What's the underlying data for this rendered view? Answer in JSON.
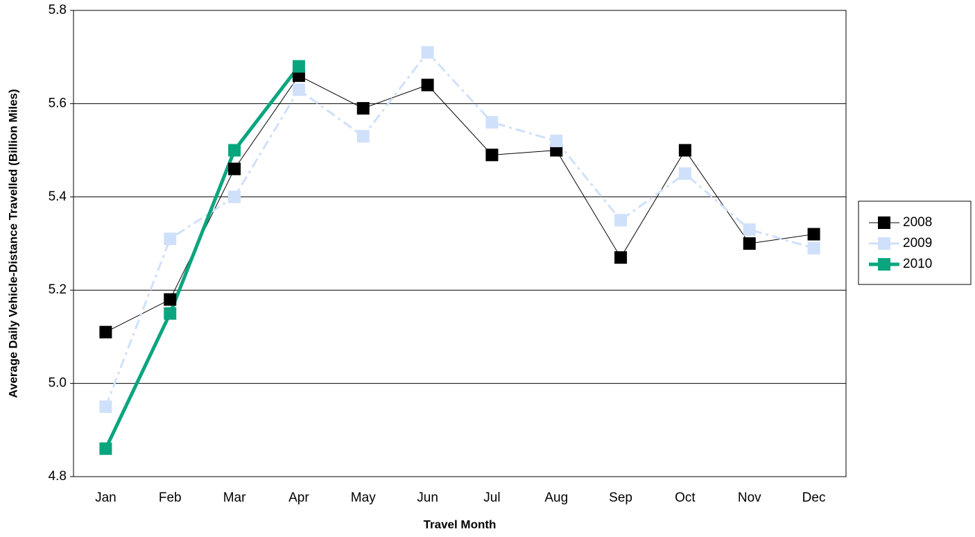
{
  "chart_data": {
    "type": "line",
    "x_label": "Travel Month",
    "y_label": "Average Daily Vehicle-Distance Travelled (Billion Miles)",
    "categories": [
      "Jan",
      "Feb",
      "Mar",
      "Apr",
      "May",
      "Jun",
      "Jul",
      "Aug",
      "Sep",
      "Oct",
      "Nov",
      "Dec"
    ],
    "series": [
      {
        "name": "2008",
        "color": "#000000",
        "line_width": 1,
        "dash": "solid",
        "values": [
          5.11,
          5.18,
          5.46,
          5.66,
          5.59,
          5.64,
          5.49,
          5.5,
          5.27,
          5.5,
          5.3,
          5.32
        ]
      },
      {
        "name": "2009",
        "color": "#cfe0fb",
        "line_width": 3,
        "dash": "dashdot",
        "values": [
          4.95,
          5.31,
          5.4,
          5.63,
          5.53,
          5.71,
          5.56,
          5.52,
          5.35,
          5.45,
          5.33,
          5.29
        ]
      },
      {
        "name": "2010",
        "color": "#0aa57f",
        "line_width": 5,
        "dash": "solid",
        "values": [
          4.86,
          5.15,
          5.5,
          5.68,
          null,
          null,
          null,
          null,
          null,
          null,
          null,
          null
        ]
      }
    ],
    "ylim": [
      4.8,
      5.8
    ],
    "yticks": [
      4.8,
      {
        "value": 5,
        "label": "5.0"
      },
      5.2,
      5.4,
      5.6,
      5.8
    ],
    "grid": true,
    "legend": "right"
  }
}
